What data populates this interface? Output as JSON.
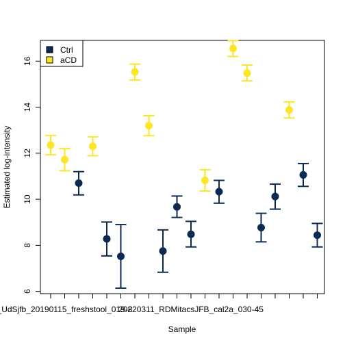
{
  "chart_data": {
    "type": "scatter",
    "xlabel": "Sample",
    "ylabel": "Estimated log-intensity",
    "ylim": [
      5.9,
      16.9
    ],
    "yticks": [
      6,
      8,
      10,
      12,
      14,
      16
    ],
    "x_tick_labels": [
      {
        "index": 1,
        "label": "_UdSjfb_20190115_freshstool_019-8"
      },
      {
        "index": 10,
        "label": "20220311_RDMitacsJFB_cal2a_030-45"
      }
    ],
    "legend": {
      "position": "top-left",
      "entries": [
        {
          "label": "Ctrl",
          "color": "#0d2a54"
        },
        {
          "label": "aCD",
          "color": "#fde725"
        }
      ]
    },
    "points": [
      {
        "i": 0,
        "group": "aCD",
        "y": 12.35,
        "lo": 11.93,
        "hi": 12.77
      },
      {
        "i": 1,
        "group": "aCD",
        "y": 11.72,
        "lo": 11.24,
        "hi": 12.2
      },
      {
        "i": 2,
        "group": "Ctrl",
        "y": 10.7,
        "lo": 10.19,
        "hi": 11.2
      },
      {
        "i": 3,
        "group": "aCD",
        "y": 12.3,
        "lo": 11.89,
        "hi": 12.71
      },
      {
        "i": 4,
        "group": "Ctrl",
        "y": 8.28,
        "lo": 7.54,
        "hi": 9.01
      },
      {
        "i": 5,
        "group": "Ctrl",
        "y": 7.52,
        "lo": 6.14,
        "hi": 8.9
      },
      {
        "i": 6,
        "group": "aCD",
        "y": 15.53,
        "lo": 15.18,
        "hi": 15.87
      },
      {
        "i": 7,
        "group": "aCD",
        "y": 13.2,
        "lo": 12.76,
        "hi": 13.63
      },
      {
        "i": 8,
        "group": "Ctrl",
        "y": 7.75,
        "lo": 6.83,
        "hi": 8.67
      },
      {
        "i": 9,
        "group": "Ctrl",
        "y": 9.67,
        "lo": 9.21,
        "hi": 10.14
      },
      {
        "i": 10,
        "group": "Ctrl",
        "y": 8.48,
        "lo": 7.93,
        "hi": 9.04
      },
      {
        "i": 11,
        "group": "aCD",
        "y": 10.82,
        "lo": 10.36,
        "hi": 11.28
      },
      {
        "i": 12,
        "group": "Ctrl",
        "y": 10.33,
        "lo": 9.83,
        "hi": 10.82
      },
      {
        "i": 13,
        "group": "aCD",
        "y": 16.55,
        "lo": 16.2,
        "hi": 16.89
      },
      {
        "i": 14,
        "group": "aCD",
        "y": 15.48,
        "lo": 15.14,
        "hi": 15.83
      },
      {
        "i": 15,
        "group": "Ctrl",
        "y": 8.77,
        "lo": 8.15,
        "hi": 9.39
      },
      {
        "i": 16,
        "group": "Ctrl",
        "y": 10.12,
        "lo": 9.57,
        "hi": 10.66
      },
      {
        "i": 17,
        "group": "aCD",
        "y": 13.88,
        "lo": 13.53,
        "hi": 14.23
      },
      {
        "i": 18,
        "group": "Ctrl",
        "y": 11.06,
        "lo": 10.56,
        "hi": 11.55
      },
      {
        "i": 19,
        "group": "Ctrl",
        "y": 8.44,
        "lo": 7.93,
        "hi": 8.95
      }
    ]
  }
}
